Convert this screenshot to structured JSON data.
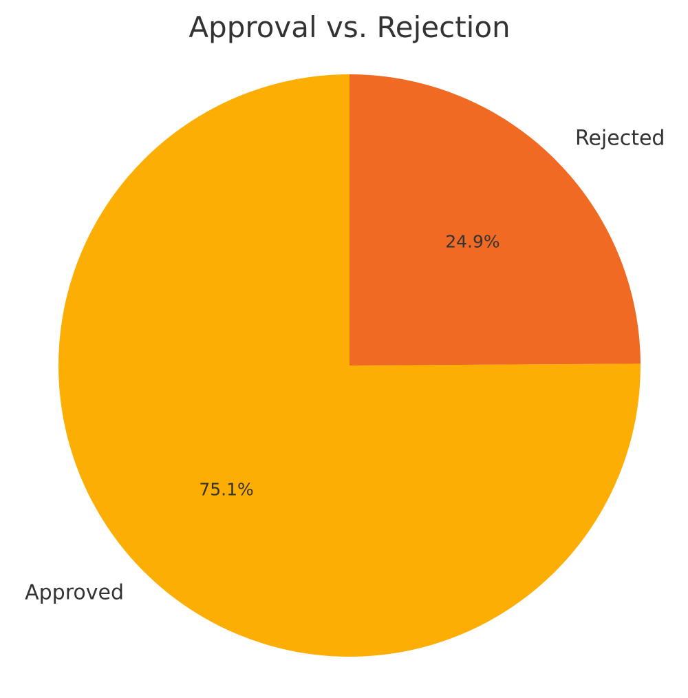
{
  "chart_data": {
    "type": "pie",
    "title": "Approval vs. Rejection",
    "categories": [
      "Approved",
      "Rejected"
    ],
    "values": [
      75.1,
      24.9
    ],
    "labels": [
      "75.1%",
      "24.9%"
    ],
    "colors": [
      "#FDAE04",
      "#F06A23"
    ],
    "start_angle": "90 degrees (top)",
    "direction": "counterclockwise",
    "legend": "none"
  }
}
